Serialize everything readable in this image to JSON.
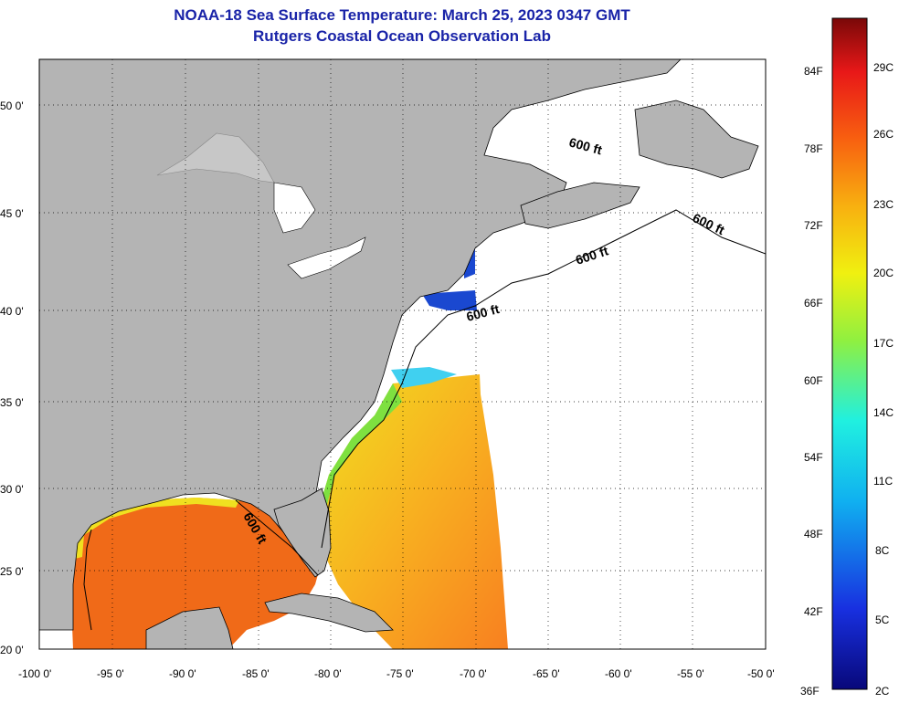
{
  "header": {
    "title": "NOAA-18 Sea Surface Temperature:  March 25, 2023 0347 GMT",
    "subtitle": "Rutgers Coastal Ocean Observation Lab"
  },
  "map": {
    "lat_ticks": [
      "50 0'",
      "45 0'",
      "40 0'",
      "35 0'",
      "30 0'",
      "25 0'",
      "20 0'"
    ],
    "lon_ticks": [
      "-100 0'",
      "-95 0'",
      "-90 0'",
      "-85 0'",
      "-80 0'",
      "-75 0'",
      "-70 0'",
      "-65 0'",
      "-60 0'",
      "-55 0'",
      "-50 0'"
    ],
    "contour_label": "600 ft",
    "land_color": "#b4b4b4",
    "nodata_color": "#ffffff"
  },
  "colorbar": {
    "fahrenheit_labels": [
      "84F",
      "78F",
      "72F",
      "66F",
      "60F",
      "54F",
      "48F",
      "42F",
      "36F"
    ],
    "celsius_labels": [
      "29C",
      "26C",
      "23C",
      "20C",
      "17C",
      "14C",
      "11C",
      "8C",
      "5C",
      "2C"
    ]
  }
}
